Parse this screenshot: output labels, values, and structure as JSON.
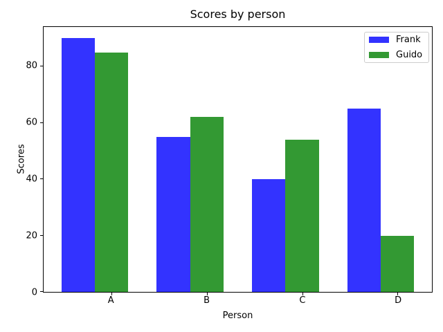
{
  "chart_data": {
    "type": "bar",
    "title": "Scores by person",
    "xlabel": "Person",
    "ylabel": "Scores",
    "categories": [
      "A",
      "B",
      "C",
      "D"
    ],
    "series": [
      {
        "name": "Frank",
        "color": "#3333ff",
        "values": [
          90,
          55,
          40,
          65
        ]
      },
      {
        "name": "Guido",
        "color": "#339933",
        "values": [
          85,
          62,
          54,
          20
        ]
      }
    ],
    "ylim": [
      0,
      94
    ],
    "yticks": [
      0,
      20,
      40,
      60,
      80
    ],
    "xlim": [
      -0.36,
      3.71
    ],
    "bar_width": 0.35,
    "legend_position": "upper right",
    "grid": false,
    "axis_color": "#000000",
    "legend_border_color": "#cccccc",
    "background_color": "#ffffff"
  }
}
